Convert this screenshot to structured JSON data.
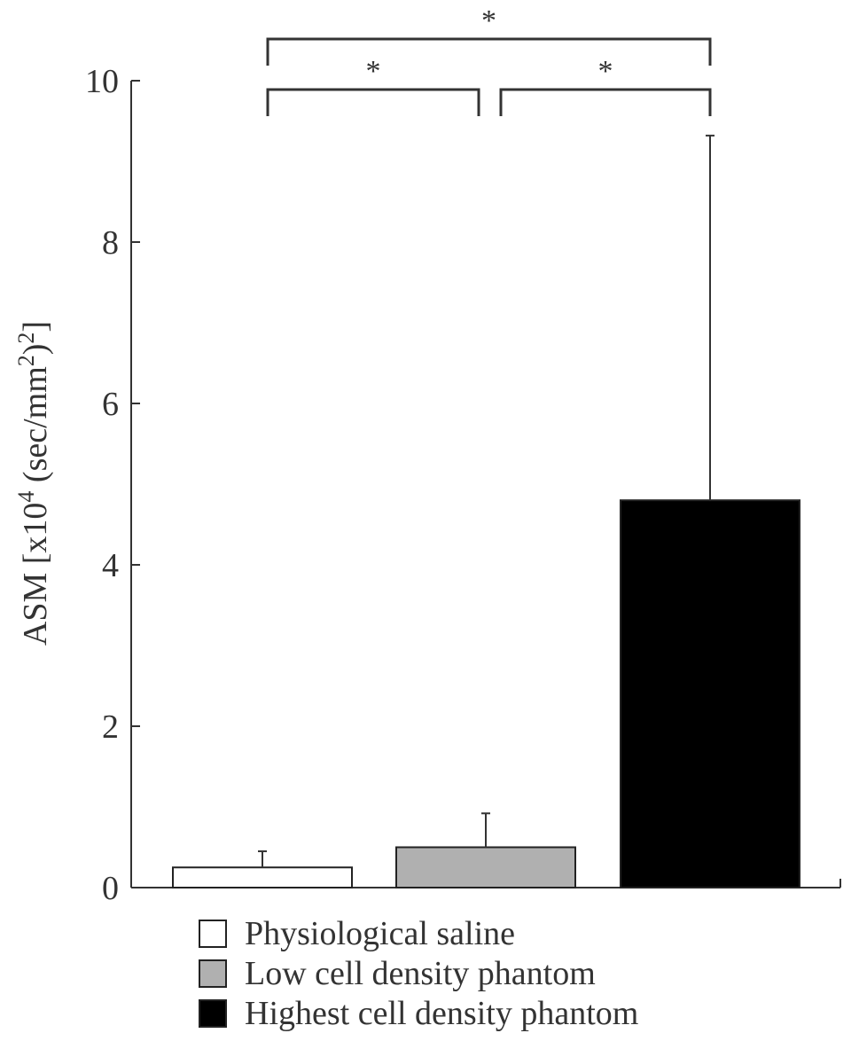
{
  "chart_data": {
    "type": "bar",
    "categories": [
      "Physiological saline",
      "Low cell density phantom",
      "Highest cell density phantom"
    ],
    "values": [
      0.25,
      0.5,
      4.8
    ],
    "error_upper": [
      0.45,
      0.92,
      9.32
    ],
    "colors": [
      "#ffffff",
      "#b0b0b0",
      "#000000"
    ],
    "ylabel_main": "ASM [x10",
    "ylabel_exp1": "4",
    "ylabel_mid": " (sec/mm",
    "ylabel_exp2": "2",
    "ylabel_end": ")",
    "ylabel_exp3": "2",
    "ylabel_close": "]",
    "ylim": [
      0,
      10
    ],
    "yticks": [
      "0",
      "2",
      "4",
      "6",
      "8",
      "10"
    ],
    "ytick_values": [
      0,
      2,
      4,
      6,
      8,
      10
    ],
    "significance": [
      {
        "from": 0,
        "to": 1,
        "label": "*"
      },
      {
        "from": 1,
        "to": 2,
        "label": "*"
      },
      {
        "from": 0,
        "to": 2,
        "label": "*"
      }
    ],
    "grid": false,
    "legend_position": "bottom"
  }
}
